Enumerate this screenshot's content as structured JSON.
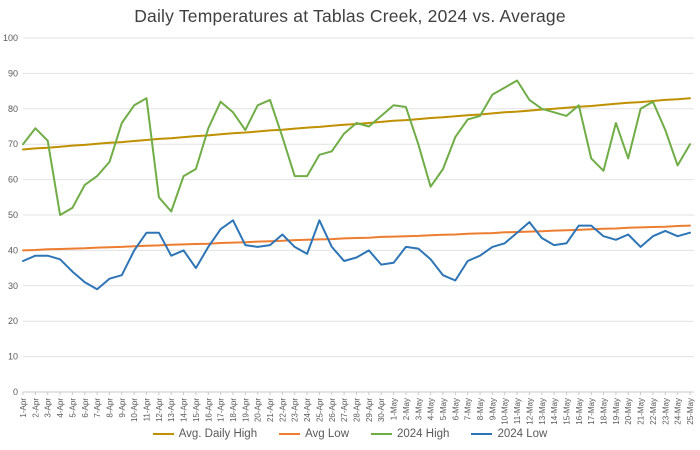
{
  "title": "Daily Temperatures at Tablas Creek, 2024 vs. Average",
  "y_axis": {
    "min": 0,
    "max": 100,
    "step": 10,
    "tick_labels": [
      "0",
      "10",
      "20",
      "30",
      "40",
      "50",
      "60",
      "70",
      "80",
      "90",
      "100"
    ]
  },
  "chart_data": {
    "type": "line",
    "title": "Daily Temperatures at Tablas Creek, 2024 vs. Average",
    "xlabel": "",
    "ylabel": "",
    "ylim": [
      0,
      100
    ],
    "y_tick_step": 10,
    "grid": true,
    "legend_position": "bottom",
    "x": [
      "1-Apr",
      "2-Apr",
      "3-Apr",
      "4-Apr",
      "5-Apr",
      "6-Apr",
      "7-Apr",
      "8-Apr",
      "9-Apr",
      "10-Apr",
      "11-Apr",
      "12-Apr",
      "13-Apr",
      "14-Apr",
      "15-Apr",
      "16-Apr",
      "17-Apr",
      "18-Apr",
      "19-Apr",
      "20-Apr",
      "21-Apr",
      "22-Apr",
      "23-Apr",
      "24-Apr",
      "25-Apr",
      "26-Apr",
      "27-Apr",
      "28-Apr",
      "29-Apr",
      "30-Apr",
      "1-May",
      "2-May",
      "3-May",
      "4-May",
      "5-May",
      "6-May",
      "7-May",
      "8-May",
      "9-May",
      "10-May",
      "11-May",
      "12-May",
      "13-May",
      "14-May",
      "15-May",
      "16-May",
      "17-May",
      "18-May",
      "19-May",
      "20-May",
      "21-May",
      "22-May",
      "23-May",
      "24-May",
      "25-May"
    ],
    "series": [
      {
        "name": "Avg. Daily High",
        "color": "#BF9000",
        "values": [
          68.5,
          68.8,
          69.0,
          69.3,
          69.6,
          69.8,
          70.1,
          70.4,
          70.6,
          70.9,
          71.2,
          71.5,
          71.7,
          72.0,
          72.3,
          72.5,
          72.8,
          73.1,
          73.3,
          73.6,
          73.9,
          74.1,
          74.4,
          74.7,
          74.9,
          75.2,
          75.5,
          75.7,
          76.0,
          76.3,
          76.6,
          76.8,
          77.1,
          77.4,
          77.6,
          77.9,
          78.2,
          78.4,
          78.7,
          79.0,
          79.2,
          79.5,
          79.8,
          80.0,
          80.3,
          80.6,
          80.8,
          81.1,
          81.4,
          81.7,
          81.9,
          82.2,
          82.5,
          82.7,
          83.0
        ]
      },
      {
        "name": "Avg Low",
        "color": "#ED7D31",
        "values": [
          40.0,
          40.1,
          40.3,
          40.4,
          40.5,
          40.6,
          40.8,
          40.9,
          41.0,
          41.2,
          41.3,
          41.4,
          41.6,
          41.7,
          41.8,
          41.9,
          42.1,
          42.2,
          42.3,
          42.5,
          42.6,
          42.7,
          42.9,
          43.0,
          43.1,
          43.2,
          43.4,
          43.5,
          43.6,
          43.8,
          43.9,
          44.0,
          44.1,
          44.3,
          44.4,
          44.5,
          44.7,
          44.8,
          44.9,
          45.1,
          45.2,
          45.3,
          45.4,
          45.6,
          45.7,
          45.8,
          46.0,
          46.1,
          46.2,
          46.4,
          46.5,
          46.6,
          46.7,
          46.9,
          47.0
        ]
      },
      {
        "name": "2024 High",
        "color": "#70AD47",
        "values": [
          70,
          74.5,
          71,
          50,
          52,
          58.5,
          61,
          65,
          76,
          81,
          83,
          55,
          51,
          61,
          63,
          74.5,
          82,
          79,
          74,
          81,
          82.5,
          72,
          61,
          61,
          67,
          68,
          73,
          76,
          75,
          78,
          81,
          80.5,
          70,
          58,
          63,
          72,
          77,
          78,
          84,
          86,
          88,
          82.5,
          80,
          79,
          78,
          81,
          66,
          62.5,
          76,
          66,
          80,
          82,
          74,
          64,
          70
        ]
      },
      {
        "name": "2024 Low",
        "color": "#2E75B6",
        "values": [
          37,
          38.5,
          38.5,
          37.5,
          34,
          31,
          29,
          32,
          33,
          40,
          45,
          45,
          38.5,
          40,
          35,
          41,
          46,
          48.5,
          41.5,
          41,
          41.5,
          44.5,
          41,
          39,
          48.5,
          41,
          37,
          38,
          40,
          36,
          36.5,
          41,
          40.5,
          37.5,
          33,
          31.5,
          37,
          38.5,
          41,
          42,
          45,
          48,
          43.5,
          41.5,
          42,
          47,
          47,
          44,
          43,
          44.5,
          41,
          44,
          45.5,
          44,
          45
        ]
      }
    ]
  },
  "style": {
    "grid_color": "#E2E2E2",
    "axis_color": "#C9C9C9",
    "label_color": "#595959",
    "title_color": "#404040"
  }
}
